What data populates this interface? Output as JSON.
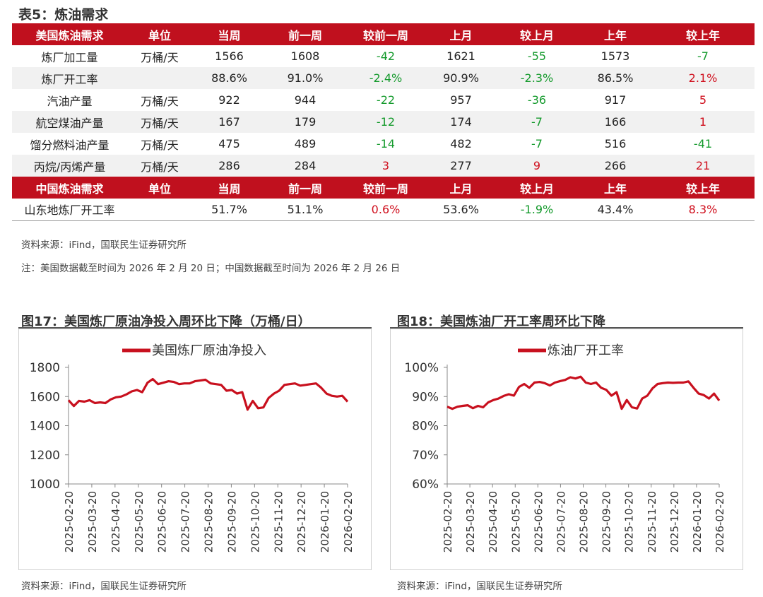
{
  "table": {
    "title": "表5：炼油需求",
    "us_header": [
      "美国炼油需求",
      "单位",
      "当周",
      "前一周",
      "较前一周",
      "上月",
      "较上月",
      "上年",
      "较上年"
    ],
    "us_rows": [
      {
        "cells": [
          "炼厂加工量",
          "万桶/天",
          "1566",
          "1608",
          "-42",
          "1621",
          "-55",
          "1573",
          "-7"
        ],
        "signs": [
          "",
          "",
          "",
          "",
          "neg",
          "",
          "neg",
          "",
          "neg"
        ]
      },
      {
        "cells": [
          "炼厂开工率",
          "",
          "88.6%",
          "91.0%",
          "-2.4%",
          "90.9%",
          "-2.3%",
          "86.5%",
          "2.1%"
        ],
        "signs": [
          "",
          "",
          "",
          "",
          "neg",
          "",
          "neg",
          "",
          "pos"
        ]
      },
      {
        "cells": [
          "汽油产量",
          "万桶/天",
          "922",
          "944",
          "-22",
          "957",
          "-36",
          "917",
          "5"
        ],
        "signs": [
          "",
          "",
          "",
          "",
          "neg",
          "",
          "neg",
          "",
          "pos"
        ]
      },
      {
        "cells": [
          "航空煤油产量",
          "万桶/天",
          "167",
          "179",
          "-12",
          "174",
          "-7",
          "166",
          "1"
        ],
        "signs": [
          "",
          "",
          "",
          "",
          "neg",
          "",
          "neg",
          "",
          "pos"
        ]
      },
      {
        "cells": [
          "馏分燃料油产量",
          "万桶/天",
          "475",
          "489",
          "-14",
          "482",
          "-7",
          "516",
          "-41"
        ],
        "signs": [
          "",
          "",
          "",
          "",
          "neg",
          "",
          "neg",
          "",
          "neg"
        ]
      },
      {
        "cells": [
          "丙烷/丙烯产量",
          "万桶/天",
          "286",
          "284",
          "3",
          "277",
          "9",
          "266",
          "21"
        ],
        "signs": [
          "",
          "",
          "",
          "",
          "pos",
          "",
          "pos",
          "",
          "pos"
        ]
      }
    ],
    "cn_header": [
      "中国炼油需求",
      "单位",
      "当周",
      "前一周",
      "较前一周",
      "上月",
      "较上月",
      "上年",
      "较上年"
    ],
    "cn_rows": [
      {
        "cells": [
          "山东地炼厂开工率",
          "",
          "51.7%",
          "51.1%",
          "0.6%",
          "53.6%",
          "-1.9%",
          "43.4%",
          "8.3%"
        ],
        "signs": [
          "",
          "",
          "",
          "",
          "pos",
          "",
          "neg",
          "",
          "pos"
        ]
      }
    ],
    "source": "资料来源：iFind，国联民生证券研究所",
    "note": "注：美国数据截至时间为 2026 年 2 月 20 日；中国数据截至时间为 2026 年 2 月 26 日"
  },
  "colors": {
    "header_red": "#c0101e",
    "negative_green": "#149a2c",
    "positive_red": "#d0101e",
    "line_red": "#c8101e"
  },
  "fig17": {
    "title": "图17：美国炼厂原油净投入周环比下降（万桶/日）",
    "source": "资料来源：iFind，国联民生证券研究所"
  },
  "fig18": {
    "title": "图18：美国炼油厂开工率周环比下降",
    "source": "资料来源：iFind，国联民生证券研究所"
  },
  "chart_data": [
    {
      "type": "line",
      "title": "",
      "legend": "top-center",
      "ylim": [
        1000,
        1800
      ],
      "yticks": [
        "1000",
        "1200",
        "1400",
        "1600",
        "1800"
      ],
      "xlabels": [
        "2025-02-20",
        "2025-03-20",
        "2025-04-20",
        "2025-05-20",
        "2025-06-20",
        "2025-07-20",
        "2025-08-20",
        "2025-09-20",
        "2025-10-20",
        "2025-11-20",
        "2025-12-20",
        "2026-01-20",
        "2026-02-20"
      ],
      "series": [
        {
          "name": "美国炼厂原油净投入",
          "color": "#c8101e",
          "values": [
            1575,
            1535,
            1570,
            1565,
            1575,
            1555,
            1560,
            1555,
            1580,
            1595,
            1600,
            1615,
            1635,
            1645,
            1630,
            1695,
            1720,
            1685,
            1695,
            1705,
            1700,
            1685,
            1690,
            1690,
            1705,
            1710,
            1715,
            1690,
            1685,
            1680,
            1640,
            1645,
            1620,
            1630,
            1510,
            1570,
            1520,
            1525,
            1590,
            1620,
            1640,
            1680,
            1685,
            1690,
            1675,
            1680,
            1685,
            1690,
            1660,
            1620,
            1605,
            1600,
            1605,
            1565
          ]
        }
      ]
    },
    {
      "type": "line",
      "title": "",
      "legend": "top-center",
      "ylim": [
        60,
        100
      ],
      "yticks": [
        "60%",
        "70%",
        "80%",
        "90%",
        "100%"
      ],
      "xlabels": [
        "2025-02-20",
        "2025-03-20",
        "2025-04-20",
        "2025-05-20",
        "2025-06-20",
        "2025-07-20",
        "2025-08-20",
        "2025-09-20",
        "2025-10-20",
        "2025-11-20",
        "2025-12-20",
        "2026-01-20",
        "2026-02-20"
      ],
      "series": [
        {
          "name": "炼油厂开工率",
          "color": "#c8101e",
          "values": [
            86.5,
            85.8,
            86.5,
            86.8,
            87.0,
            86.0,
            86.8,
            86.3,
            88.0,
            88.8,
            89.3,
            90.2,
            90.8,
            90.3,
            93.3,
            94.3,
            93.0,
            94.8,
            95.0,
            94.6,
            93.8,
            94.8,
            95.3,
            95.7,
            96.6,
            96.2,
            96.8,
            94.8,
            94.3,
            94.8,
            93.0,
            92.3,
            90.3,
            91.5,
            85.8,
            88.8,
            86.3,
            85.9,
            89.3,
            90.3,
            92.8,
            94.3,
            94.6,
            94.8,
            94.7,
            94.8,
            94.8,
            95.2,
            93.0,
            91.0,
            90.5,
            89.3,
            91.0,
            88.6
          ]
        }
      ]
    }
  ]
}
